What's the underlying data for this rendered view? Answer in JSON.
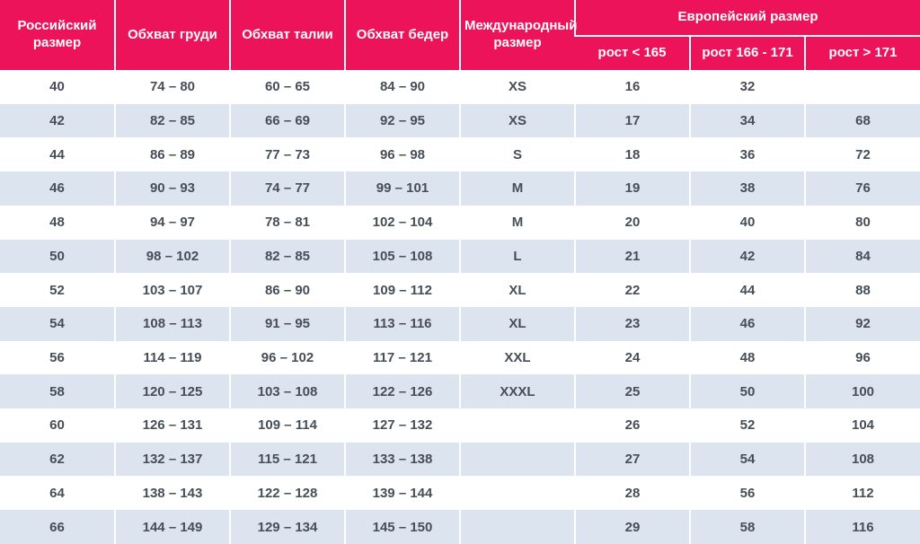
{
  "colors": {
    "header_bg": "#EC135A",
    "header_text": "#FFFFFF",
    "row_bg": "#FFFFFF",
    "row_alt_bg": "#DCE4F0",
    "cell_text": "#474E57",
    "divider": "#FFFFFF"
  },
  "chart_data": {
    "type": "table",
    "title": "",
    "header": {
      "columns": [
        "Российский размер",
        "Обхват груди",
        "Обхват талии",
        "Обхват бедер",
        "Международный размер"
      ],
      "group": {
        "label": "Европейский размер",
        "columns": [
          "рост < 165",
          "рост 166 - 171",
          "рост > 171"
        ]
      }
    },
    "rows": [
      [
        "40",
        "74 – 80",
        "60 – 65",
        "84 – 90",
        "XS",
        "16",
        "32",
        ""
      ],
      [
        "42",
        "82 – 85",
        "66 – 69",
        "92 – 95",
        "XS",
        "17",
        "34",
        "68"
      ],
      [
        "44",
        "86 – 89",
        "77 – 73",
        "96 – 98",
        "S",
        "18",
        "36",
        "72"
      ],
      [
        "46",
        "90 – 93",
        "74 – 77",
        "99 – 101",
        "M",
        "19",
        "38",
        "76"
      ],
      [
        "48",
        "94 – 97",
        "78 – 81",
        "102 – 104",
        "M",
        "20",
        "40",
        "80"
      ],
      [
        "50",
        "98 – 102",
        "82 – 85",
        "105 – 108",
        "L",
        "21",
        "42",
        "84"
      ],
      [
        "52",
        "103 – 107",
        "86 – 90",
        "109 – 112",
        "XL",
        "22",
        "44",
        "88"
      ],
      [
        "54",
        "108 – 113",
        "91 – 95",
        "113 – 116",
        "XL",
        "23",
        "46",
        "92"
      ],
      [
        "56",
        "114 – 119",
        "96 – 102",
        "117 – 121",
        "XXL",
        "24",
        "48",
        "96"
      ],
      [
        "58",
        "120 – 125",
        "103 – 108",
        "122 – 126",
        "XXXL",
        "25",
        "50",
        "100"
      ],
      [
        "60",
        "126 – 131",
        "109 – 114",
        "127 – 132",
        "",
        "26",
        "52",
        "104"
      ],
      [
        "62",
        "132 – 137",
        "115 – 121",
        "133 – 138",
        "",
        "27",
        "54",
        "108"
      ],
      [
        "64",
        "138 – 143",
        "122 – 128",
        "139 – 144",
        "",
        "28",
        "56",
        "112"
      ],
      [
        "66",
        "144 – 149",
        "129 – 134",
        "145 – 150",
        "",
        "29",
        "58",
        "116"
      ]
    ]
  }
}
